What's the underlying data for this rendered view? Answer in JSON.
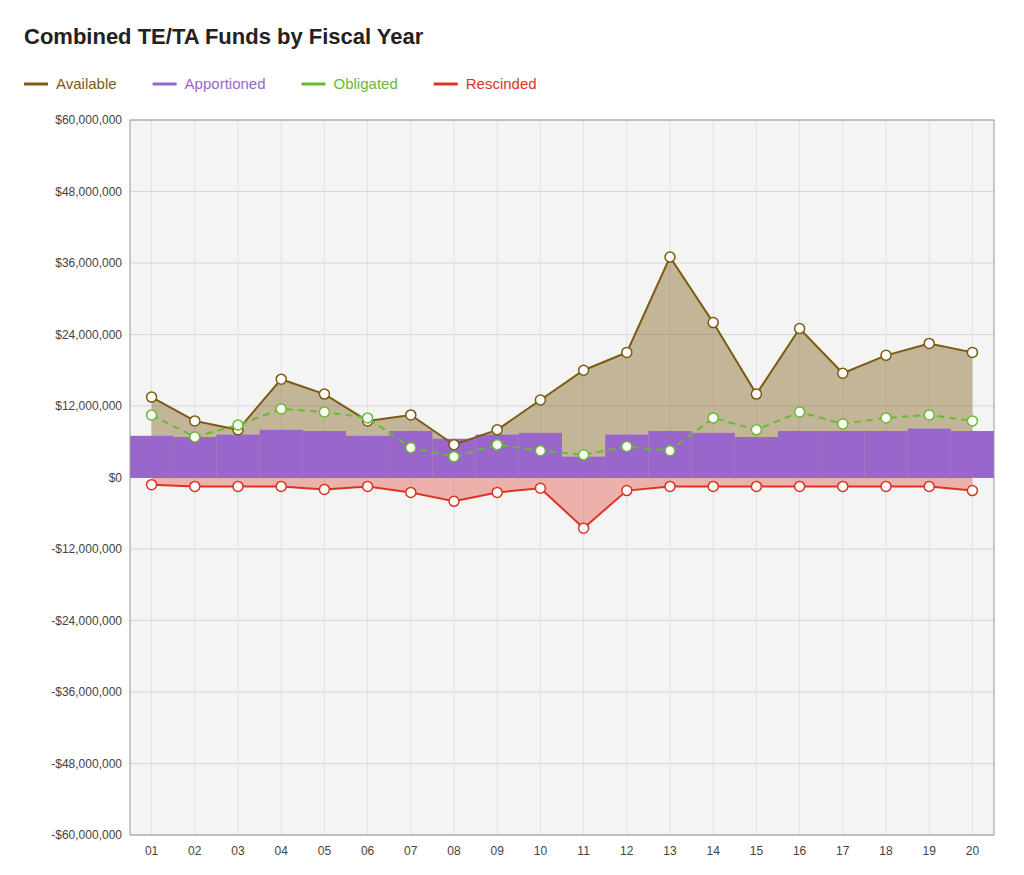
{
  "chart_data": {
    "type": "line",
    "title": "Combined TE/TA Funds by Fiscal Year",
    "categories": [
      "01",
      "02",
      "03",
      "04",
      "05",
      "06",
      "07",
      "08",
      "09",
      "10",
      "11",
      "12",
      "13",
      "14",
      "15",
      "16",
      "17",
      "18",
      "19",
      "20"
    ],
    "series": [
      {
        "name": "Available",
        "type": "area",
        "color": "#7B5B10",
        "marker": "circle",
        "line_style": "solid",
        "values": [
          13500000,
          9500000,
          8000000,
          16500000,
          14000000,
          9500000,
          10500000,
          5500000,
          8000000,
          13000000,
          18000000,
          21000000,
          37000000,
          26000000,
          14000000,
          25000000,
          17500000,
          20500000,
          22500000,
          21000000
        ]
      },
      {
        "name": "Apportioned",
        "type": "bar",
        "color": "#9966CC",
        "values": [
          7000000,
          6800000,
          7200000,
          8000000,
          7800000,
          7000000,
          7800000,
          6500000,
          7200000,
          7500000,
          3500000,
          7200000,
          7800000,
          7500000,
          6800000,
          7800000,
          7800000,
          7800000,
          8200000,
          7800000
        ]
      },
      {
        "name": "Obligated",
        "type": "line",
        "color": "#66BB33",
        "marker": "circle",
        "line_style": "dashed",
        "values": [
          10500000,
          6800000,
          8800000,
          11500000,
          11000000,
          10000000,
          5000000,
          3500000,
          5500000,
          4500000,
          3800000,
          5200000,
          4500000,
          10000000,
          8000000,
          11000000,
          9000000,
          10000000,
          10500000,
          9500000
        ]
      },
      {
        "name": "Rescinded",
        "type": "area",
        "color": "#DD3322",
        "marker": "circle",
        "line_style": "solid",
        "values": [
          -1200000,
          -1500000,
          -1500000,
          -1500000,
          -2000000,
          -1500000,
          -2500000,
          -4000000,
          -2500000,
          -1800000,
          -8500000,
          -2200000,
          -1500000,
          -1500000,
          -1500000,
          -1500000,
          -1500000,
          -1500000,
          -1500000,
          -2200000
        ]
      }
    ],
    "ylim": [
      -60000000,
      60000000
    ],
    "yticks": [
      {
        "value": -60000000,
        "label": "-$60,000,000"
      },
      {
        "value": -48000000,
        "label": "-$48,000,000"
      },
      {
        "value": -36000000,
        "label": "-$36,000,000"
      },
      {
        "value": -24000000,
        "label": "-$24,000,000"
      },
      {
        "value": -12000000,
        "label": "-$12,000,000"
      },
      {
        "value": 0,
        "label": "$0"
      },
      {
        "value": 12000000,
        "label": "$12,000,000"
      },
      {
        "value": 24000000,
        "label": "$24,000,000"
      },
      {
        "value": 36000000,
        "label": "$36,000,000"
      },
      {
        "value": 48000000,
        "label": "$48,000,000"
      },
      {
        "value": 60000000,
        "label": "$60,000,000"
      }
    ],
    "grid": true,
    "legend": "top"
  }
}
